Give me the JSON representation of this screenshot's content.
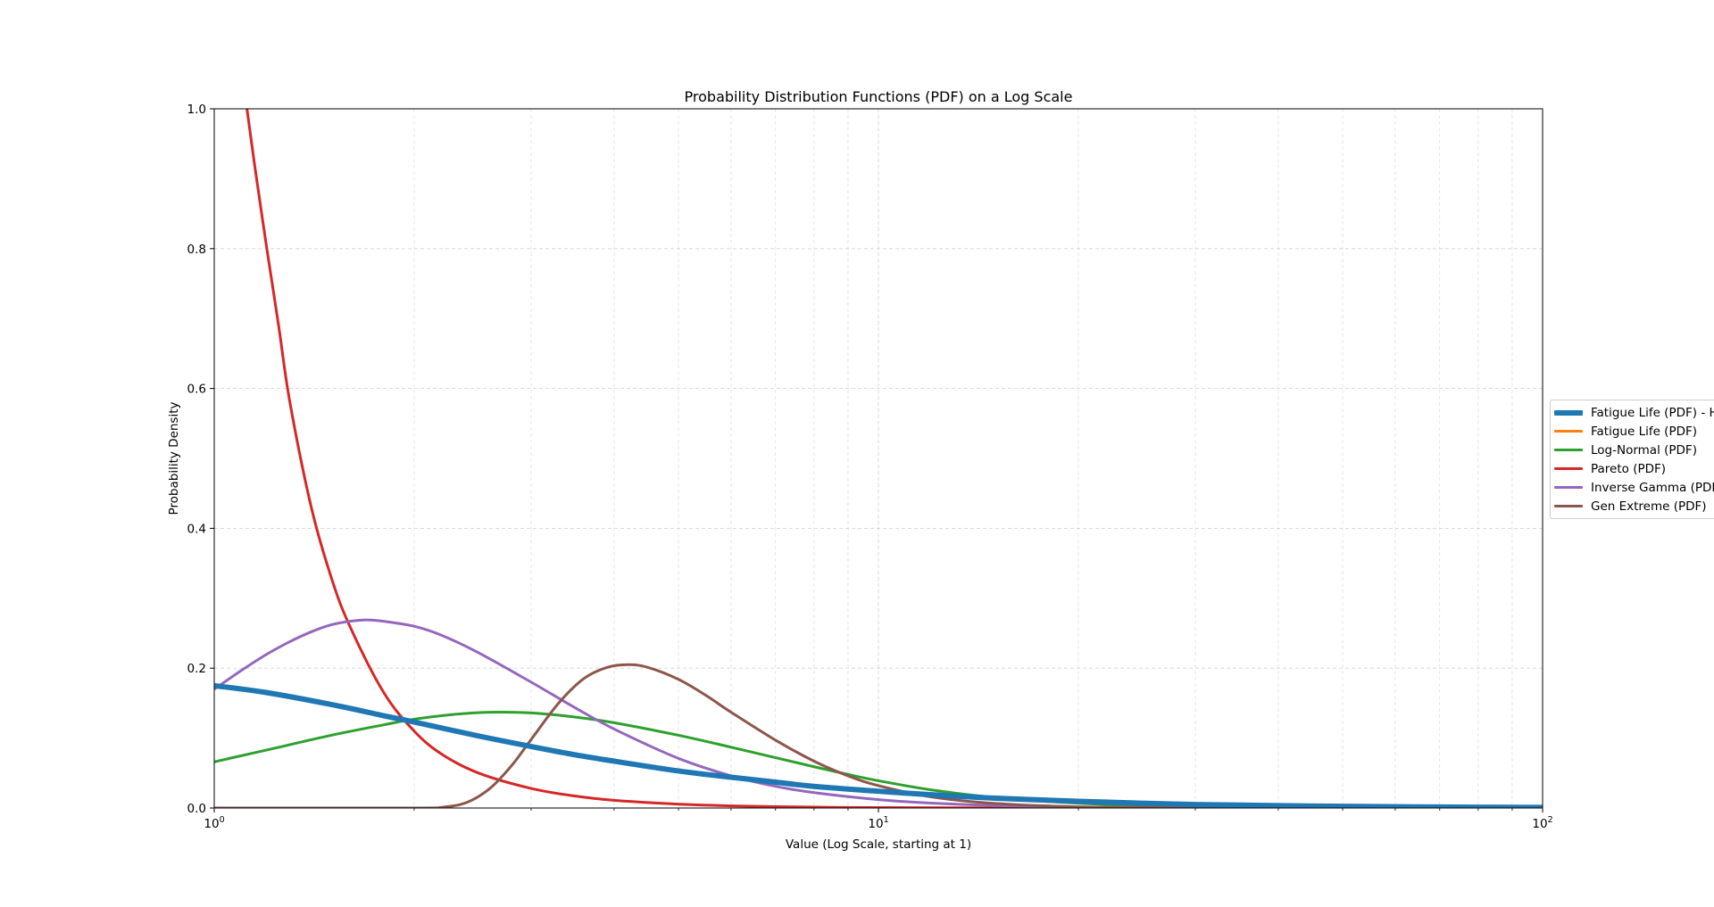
{
  "chart_data": {
    "type": "line",
    "title": "Probability Distribution Functions (PDF) on a Log Scale",
    "xlabel": "Value (Log Scale, starting at 1)",
    "ylabel": "Probability Density",
    "xscale": "log",
    "xlim": [
      1,
      100
    ],
    "ylim": [
      0,
      1.0
    ],
    "grid": true,
    "legend_placement": "right, outside plot",
    "x_ticks": [
      {
        "value": 1,
        "base": "10",
        "exp": "0"
      },
      {
        "value": 10,
        "base": "10",
        "exp": "1"
      },
      {
        "value": 100,
        "base": "10",
        "exp": "2"
      }
    ],
    "y_ticks": [
      "0.0",
      "0.2",
      "0.4",
      "0.6",
      "0.8",
      "1.0"
    ],
    "y_tick_values": [
      0,
      0.2,
      0.4,
      0.6,
      0.8,
      1.0
    ],
    "series": [
      {
        "name": "Fatigue Life (PDF) - H",
        "color": "#1f77b4",
        "width": "thick",
        "points": [
          [
            1,
            0.175
          ],
          [
            1.2,
            0.165
          ],
          [
            1.5,
            0.148
          ],
          [
            1.8,
            0.132
          ],
          [
            2,
            0.123
          ],
          [
            2.5,
            0.103
          ],
          [
            3,
            0.088
          ],
          [
            3.5,
            0.076
          ],
          [
            4,
            0.067
          ],
          [
            5,
            0.053
          ],
          [
            6,
            0.044
          ],
          [
            7,
            0.037
          ],
          [
            8,
            0.031
          ],
          [
            10,
            0.024
          ],
          [
            12,
            0.019
          ],
          [
            15,
            0.014
          ],
          [
            20,
            0.0095
          ],
          [
            30,
            0.005
          ],
          [
            40,
            0.0033
          ],
          [
            50,
            0.0024
          ],
          [
            70,
            0.0014
          ],
          [
            100,
            0.0008
          ]
        ]
      },
      {
        "name": "Fatigue Life (PDF)",
        "color": "#ff7f0e",
        "width": "normal",
        "points": []
      },
      {
        "name": "Log-Normal (PDF)",
        "color": "#2ca02c",
        "width": "normal",
        "points": [
          [
            1,
            0.066
          ],
          [
            1.2,
            0.083
          ],
          [
            1.5,
            0.104
          ],
          [
            1.8,
            0.119
          ],
          [
            2,
            0.127
          ],
          [
            2.3,
            0.134
          ],
          [
            2.6,
            0.137
          ],
          [
            3,
            0.136
          ],
          [
            3.5,
            0.13
          ],
          [
            4,
            0.122
          ],
          [
            5,
            0.104
          ],
          [
            6,
            0.087
          ],
          [
            7,
            0.072
          ],
          [
            8,
            0.059
          ],
          [
            9,
            0.048
          ],
          [
            10,
            0.039
          ],
          [
            12,
            0.026
          ],
          [
            15,
            0.015
          ],
          [
            20,
            0.0068
          ],
          [
            25,
            0.0033
          ],
          [
            30,
            0.0017
          ],
          [
            40,
            0.0005
          ],
          [
            50,
            0.0002
          ],
          [
            100,
            0
          ]
        ]
      },
      {
        "name": "Pareto (PDF)",
        "color": "#d62728",
        "width": "normal",
        "points": [
          [
            1.12,
            1.0
          ],
          [
            1.15,
            0.92
          ],
          [
            1.2,
            0.8
          ],
          [
            1.25,
            0.69
          ],
          [
            1.3,
            0.58
          ],
          [
            1.4,
            0.43
          ],
          [
            1.5,
            0.33
          ],
          [
            1.6,
            0.26
          ],
          [
            1.8,
            0.165
          ],
          [
            2,
            0.11
          ],
          [
            2.2,
            0.077
          ],
          [
            2.5,
            0.05
          ],
          [
            3,
            0.028
          ],
          [
            3.5,
            0.017
          ],
          [
            4,
            0.011
          ],
          [
            5,
            0.0055
          ],
          [
            6,
            0.0031
          ],
          [
            8,
            0.0012
          ],
          [
            10,
            0.0006
          ],
          [
            15,
            0.0002
          ],
          [
            20,
            0.0001
          ],
          [
            100,
            0
          ]
        ]
      },
      {
        "name": "Inverse Gamma (PDF)",
        "color": "#9467bd",
        "width": "normal",
        "points": [
          [
            1,
            0.17
          ],
          [
            1.1,
            0.197
          ],
          [
            1.2,
            0.22
          ],
          [
            1.3,
            0.238
          ],
          [
            1.4,
            0.252
          ],
          [
            1.5,
            0.262
          ],
          [
            1.6,
            0.267
          ],
          [
            1.7,
            0.269
          ],
          [
            1.8,
            0.267
          ],
          [
            2,
            0.26
          ],
          [
            2.2,
            0.247
          ],
          [
            2.5,
            0.222
          ],
          [
            3,
            0.18
          ],
          [
            3.5,
            0.143
          ],
          [
            4,
            0.113
          ],
          [
            5,
            0.071
          ],
          [
            6,
            0.046
          ],
          [
            7,
            0.031
          ],
          [
            8,
            0.022
          ],
          [
            10,
            0.012
          ],
          [
            12,
            0.007
          ],
          [
            15,
            0.0035
          ],
          [
            20,
            0.0013
          ],
          [
            30,
            0.0003
          ],
          [
            50,
            0
          ],
          [
            100,
            0
          ]
        ]
      },
      {
        "name": "Gen Extreme (PDF)",
        "color": "#8c564b",
        "width": "normal",
        "points": [
          [
            1,
            0
          ],
          [
            2,
            0
          ],
          [
            2.2,
            0.001
          ],
          [
            2.4,
            0.008
          ],
          [
            2.6,
            0.028
          ],
          [
            2.8,
            0.06
          ],
          [
            3,
            0.098
          ],
          [
            3.3,
            0.15
          ],
          [
            3.6,
            0.185
          ],
          [
            3.9,
            0.201
          ],
          [
            4.2,
            0.205
          ],
          [
            4.5,
            0.201
          ],
          [
            5,
            0.184
          ],
          [
            5.5,
            0.161
          ],
          [
            6,
            0.137
          ],
          [
            7,
            0.097
          ],
          [
            8,
            0.067
          ],
          [
            9,
            0.046
          ],
          [
            10,
            0.032
          ],
          [
            12,
            0.016
          ],
          [
            15,
            0.0065
          ],
          [
            20,
            0.0018
          ],
          [
            30,
            0.0002
          ],
          [
            50,
            0
          ],
          [
            100,
            0
          ]
        ]
      }
    ]
  }
}
